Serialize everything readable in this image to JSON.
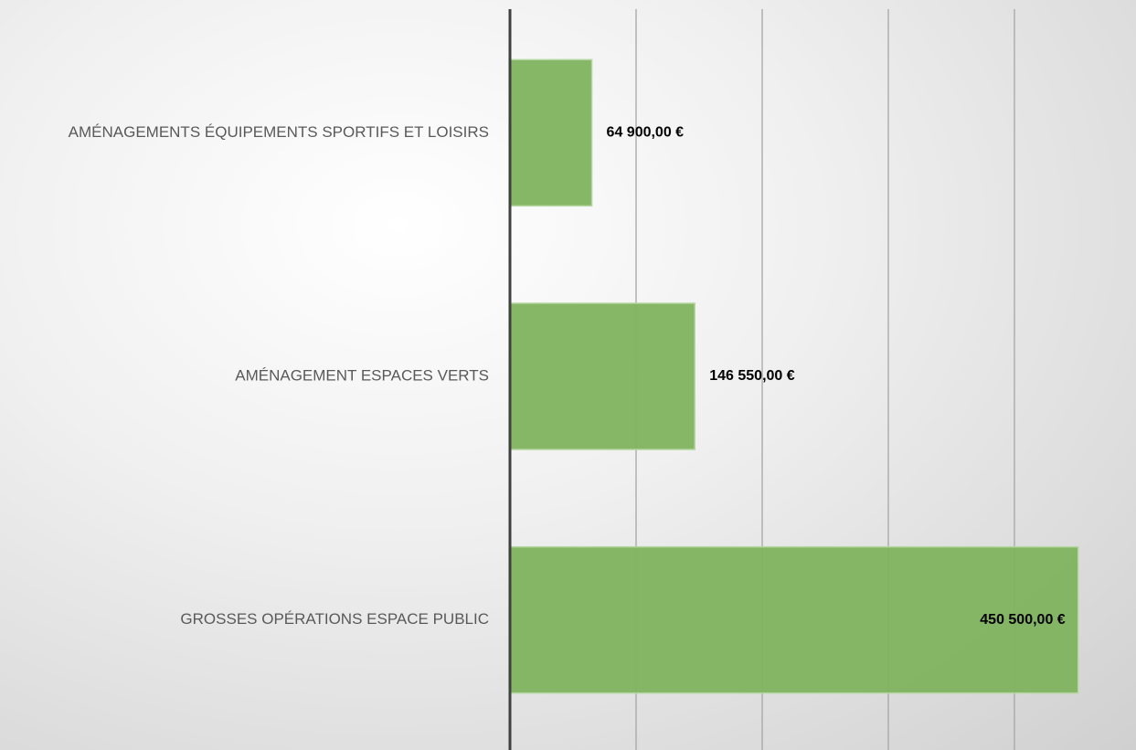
{
  "chart_data": {
    "type": "hbar",
    "categories": [
      "AMÉNAGEMENTS ÉQUIPEMENTS SPORTIFS ET LOISIRS",
      "AMÉNAGEMENT ESPACES VERTS",
      "GROSSES OPÉRATIONS ESPACE PUBLIC"
    ],
    "values": [
      64900,
      146550,
      450500
    ],
    "value_labels": [
      "64 900,00 €",
      "146 550,00 €",
      "450 500,00 €"
    ],
    "color": "#7fb35f",
    "xlim": [
      0,
      500000
    ],
    "xticks": [
      0,
      100000,
      200000,
      300000,
      400000
    ],
    "grid": true
  }
}
